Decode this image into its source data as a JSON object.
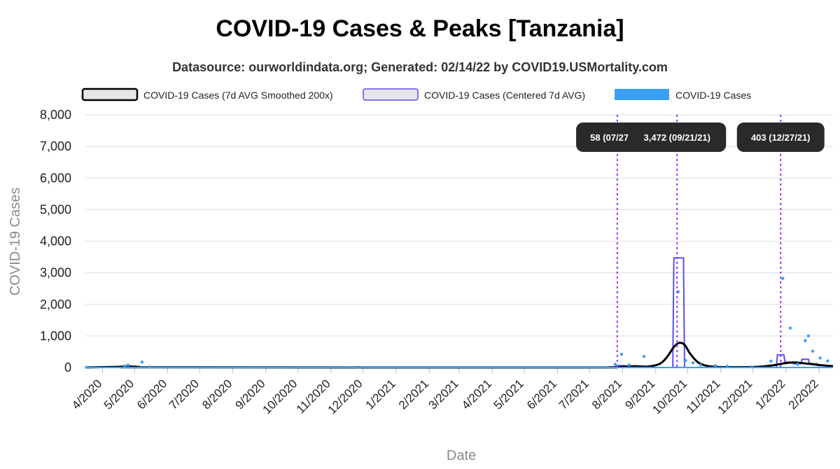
{
  "chart_data": {
    "type": "line",
    "title": "COVID-19 Cases & Peaks [Tanzania]",
    "subtitle": "Datasource: ourworldindata.org; Generated: 02/14/22 by COVID19.USMortality.com",
    "xlabel": "Date",
    "ylabel": "COVID-19 Cases",
    "ylim": [
      0,
      8000
    ],
    "yticks": [
      0,
      1000,
      2000,
      3000,
      4000,
      5000,
      6000,
      7000,
      8000
    ],
    "ytick_labels": [
      "0",
      "1,000",
      "2,000",
      "3,000",
      "4,000",
      "5,000",
      "6,000",
      "7,000",
      "8,000"
    ],
    "xlim": [
      "2020-03-16",
      "2022-02-14"
    ],
    "x_tick_labels": [
      "4/2020",
      "5/2020",
      "6/2020",
      "7/2020",
      "8/2020",
      "9/2020",
      "10/2020",
      "11/2020",
      "12/2020",
      "1/2021",
      "2/2021",
      "3/2021",
      "4/2021",
      "5/2021",
      "6/2021",
      "7/2021",
      "8/2021",
      "9/2021",
      "10/2021",
      "11/2021",
      "12/2021",
      "1/2022",
      "2/2022"
    ],
    "x_tick_dates": [
      "2020-04-01",
      "2020-05-01",
      "2020-06-01",
      "2020-07-01",
      "2020-08-01",
      "2020-09-01",
      "2020-10-01",
      "2020-11-01",
      "2020-12-01",
      "2021-01-01",
      "2021-02-01",
      "2021-03-01",
      "2021-04-01",
      "2021-05-01",
      "2021-06-01",
      "2021-07-01",
      "2021-08-01",
      "2021-09-01",
      "2021-10-01",
      "2021-11-01",
      "2021-12-01",
      "2022-01-01",
      "2022-02-01"
    ],
    "grid": true,
    "legend_placement": "top",
    "legend": [
      {
        "name": "COVID-19 Cases (7d AVG Smoothed 200x)",
        "color": "#000000",
        "fill": "#e6e6e6"
      },
      {
        "name": "COVID-19 Cases (Centered 7d AVG)",
        "color": "#5b4ff0",
        "fill": "#e6e6e6"
      },
      {
        "name": "COVID-19 Cases",
        "color": "#3aa0f5",
        "fill": "#3aa0f5"
      }
    ],
    "series": [
      {
        "name": "COVID-19 Cases (7d AVG Smoothed 200x)",
        "color": "#000000",
        "x": [
          "2020-03-16",
          "2020-04-15",
          "2020-04-25",
          "2020-05-05",
          "2020-05-20",
          "2021-06-15",
          "2021-07-20",
          "2021-07-27",
          "2021-08-05",
          "2021-08-15",
          "2021-08-25",
          "2021-09-05",
          "2021-09-12",
          "2021-09-18",
          "2021-09-23",
          "2021-09-28",
          "2021-10-03",
          "2021-10-10",
          "2021-10-18",
          "2021-10-28",
          "2021-11-15",
          "2021-12-05",
          "2021-12-20",
          "2021-12-30",
          "2022-01-08",
          "2022-01-16",
          "2022-01-24",
          "2022-02-01",
          "2022-02-14"
        ],
        "y": [
          0,
          20,
          35,
          20,
          5,
          0,
          5,
          15,
          35,
          40,
          30,
          120,
          350,
          650,
          780,
          720,
          450,
          180,
          60,
          20,
          10,
          20,
          70,
          130,
          160,
          140,
          110,
          80,
          40
        ]
      },
      {
        "name": "COVID-19 Cases (Centered 7d AVG)",
        "color": "#5b4ff0",
        "x": [
          "2020-03-16",
          "2020-04-22",
          "2020-04-29",
          "2020-05-06",
          "2021-07-26",
          "2021-07-27",
          "2021-08-03",
          "2021-08-04",
          "2021-08-10",
          "2021-08-11",
          "2021-08-18",
          "2021-09-17",
          "2021-09-18",
          "2021-09-27",
          "2021-09-28",
          "2021-12-23",
          "2021-12-24",
          "2021-12-30",
          "2021-12-31",
          "2022-01-07",
          "2022-01-08",
          "2022-01-15",
          "2022-01-16",
          "2022-01-22",
          "2022-01-23",
          "2022-01-30",
          "2022-01-31",
          "2022-02-14"
        ],
        "y": [
          0,
          20,
          20,
          0,
          0,
          58,
          58,
          30,
          30,
          40,
          0,
          0,
          3472,
          3472,
          0,
          0,
          403,
          403,
          170,
          170,
          120,
          120,
          260,
          260,
          120,
          120,
          60,
          60
        ]
      },
      {
        "name": "COVID-19 Cases",
        "color": "#3aa0f5",
        "points": [
          [
            "2020-03-17",
            5
          ],
          [
            "2020-04-22",
            50
          ],
          [
            "2020-04-25",
            80
          ],
          [
            "2020-05-08",
            170
          ],
          [
            "2020-05-15",
            20
          ],
          [
            "2021-07-25",
            100
          ],
          [
            "2021-07-31",
            420
          ],
          [
            "2021-08-07",
            80
          ],
          [
            "2021-08-21",
            350
          ],
          [
            "2021-09-22",
            2400
          ],
          [
            "2021-09-29",
            220
          ],
          [
            "2021-10-06",
            150
          ],
          [
            "2021-10-13",
            80
          ],
          [
            "2021-10-27",
            60
          ],
          [
            "2021-11-07",
            40
          ],
          [
            "2021-11-30",
            20
          ],
          [
            "2021-12-18",
            200
          ],
          [
            "2021-12-29",
            2820
          ],
          [
            "2022-01-05",
            1250
          ],
          [
            "2022-01-12",
            100
          ],
          [
            "2022-01-19",
            850
          ],
          [
            "2022-01-22",
            1000
          ],
          [
            "2022-01-26",
            520
          ],
          [
            "2022-02-02",
            300
          ],
          [
            "2022-02-09",
            210
          ]
        ]
      }
    ],
    "peaks": [
      {
        "date": "2021-07-27",
        "label": "58 (07/27/21)"
      },
      {
        "date": "2021-09-21",
        "label": "3,472 (09/21/21)"
      },
      {
        "date": "2021-12-27",
        "label": "403 (12/27/21)"
      }
    ]
  }
}
